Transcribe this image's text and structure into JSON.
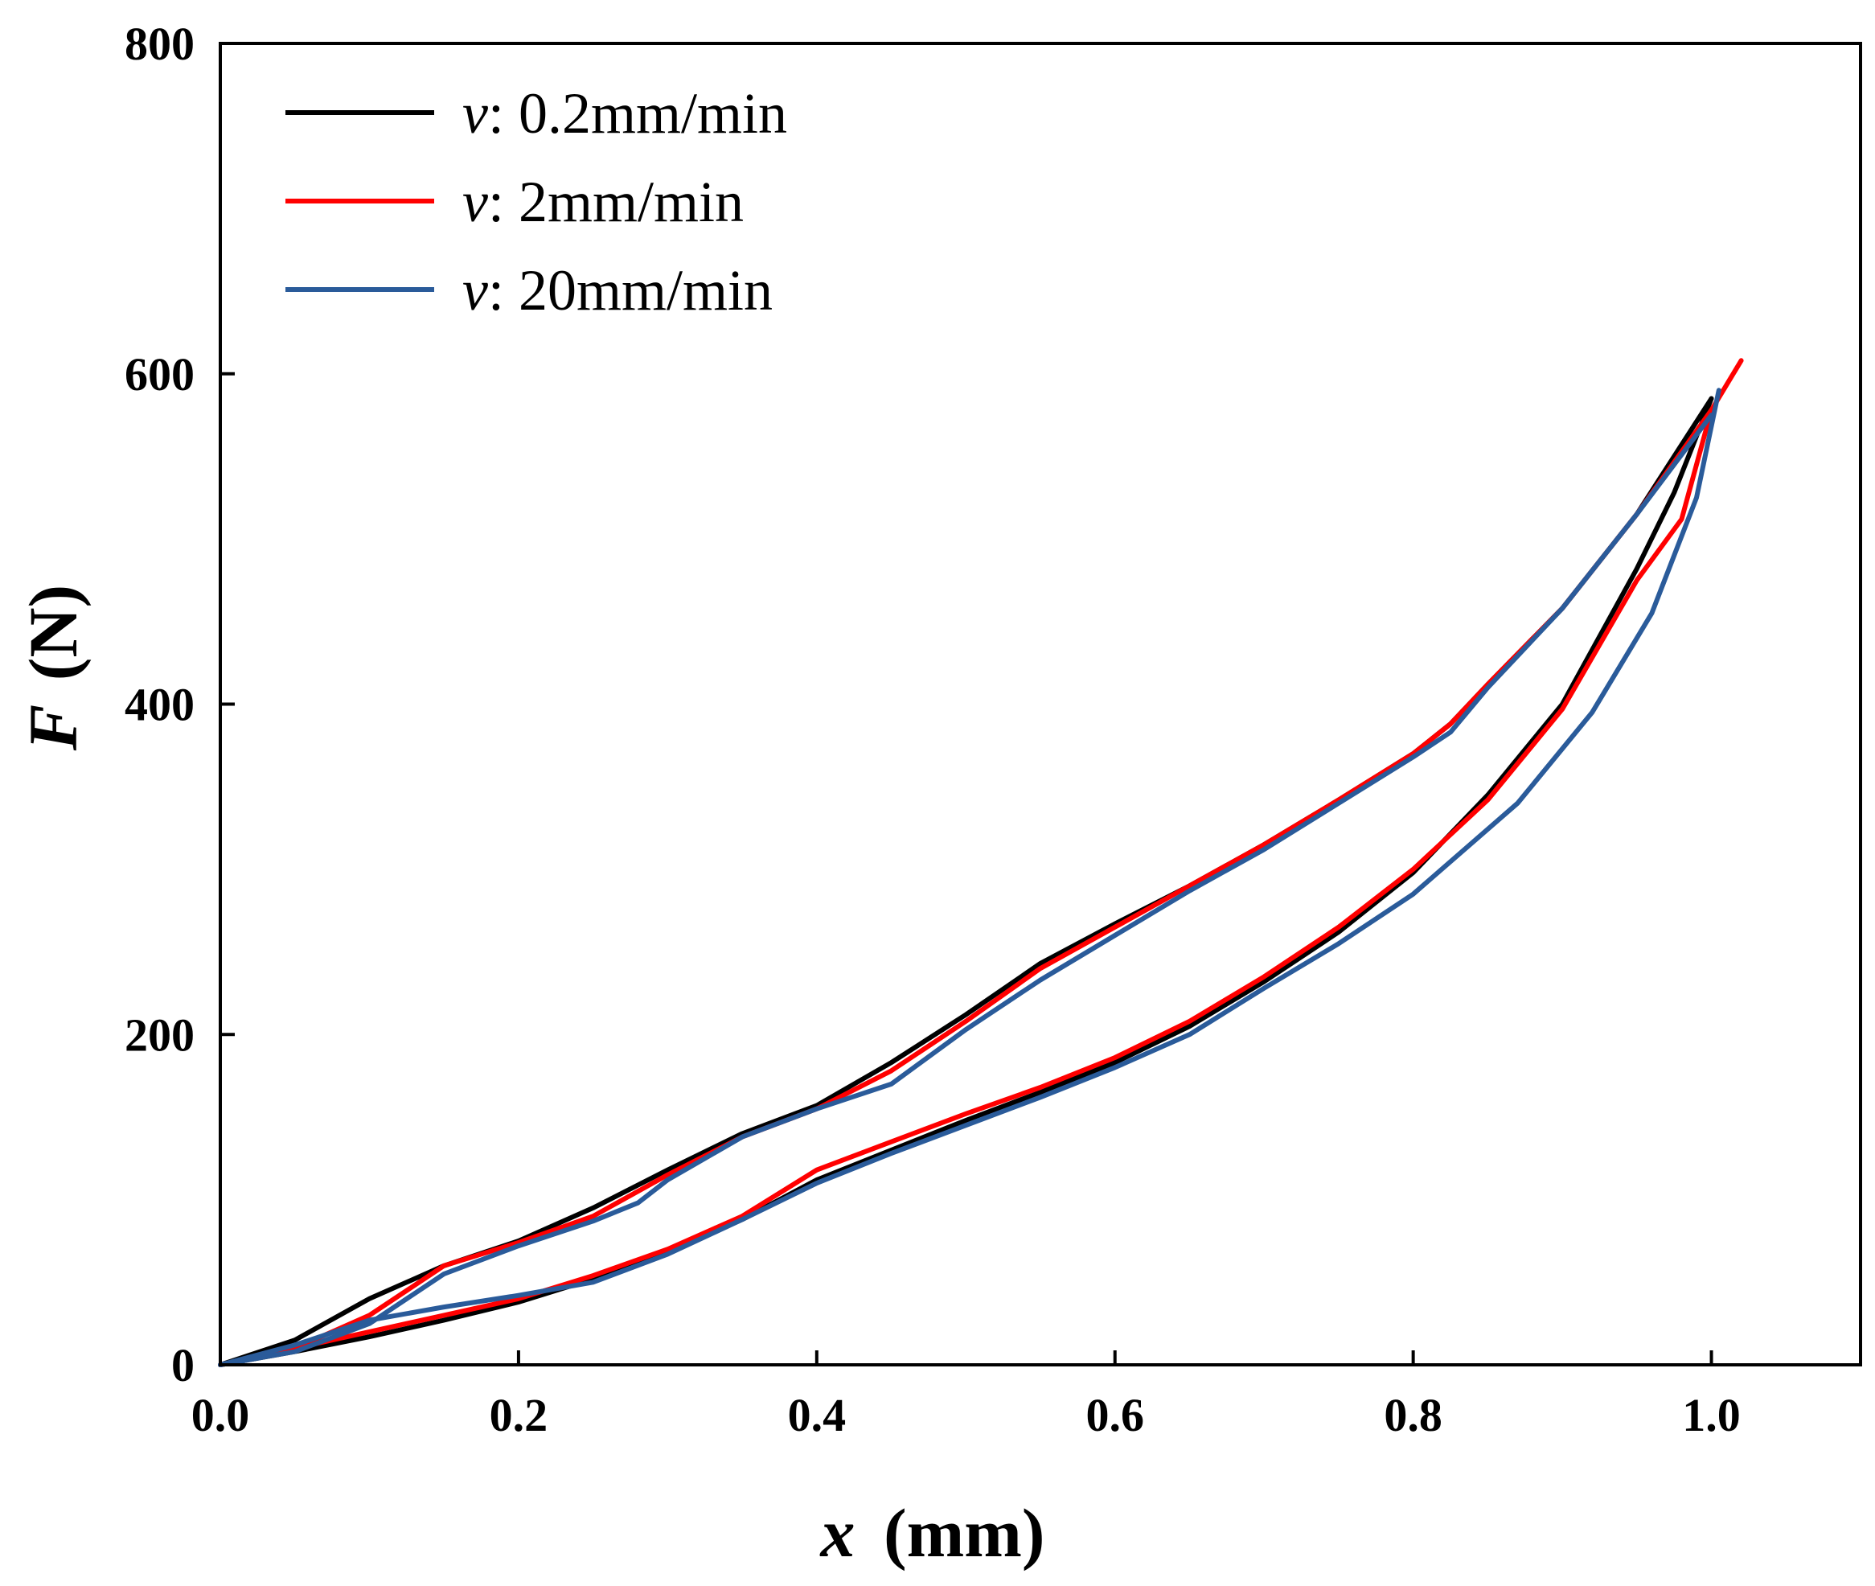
{
  "chart_data": {
    "type": "line",
    "title": "",
    "xlabel": {
      "symbol": "x",
      "unit": "(mm)"
    },
    "ylabel": {
      "symbol": "F",
      "unit": "(N)"
    },
    "xlim": [
      0,
      1.1
    ],
    "ylim": [
      0,
      800
    ],
    "xticks": [
      0.0,
      0.2,
      0.4,
      0.6,
      0.8,
      1.0
    ],
    "xtick_labels": [
      "0.0",
      "0.2",
      "0.4",
      "0.6",
      "0.8",
      "1.0"
    ],
    "yticks": [
      0,
      200,
      400,
      600,
      800
    ],
    "ytick_labels": [
      "0",
      "200",
      "400",
      "600",
      "800"
    ],
    "grid": false,
    "legend_position": "top-left",
    "series": [
      {
        "name": "v: 0.2mm/min",
        "legend_var": "v",
        "legend_text": ": 0.2mm/min",
        "color": "#000000",
        "loading": [
          [
            0,
            0
          ],
          [
            0.05,
            15
          ],
          [
            0.1,
            40
          ],
          [
            0.15,
            60
          ],
          [
            0.2,
            75
          ],
          [
            0.25,
            95
          ],
          [
            0.3,
            118
          ],
          [
            0.35,
            140
          ],
          [
            0.4,
            157
          ],
          [
            0.45,
            183
          ],
          [
            0.5,
            212
          ],
          [
            0.55,
            243
          ],
          [
            0.6,
            267
          ],
          [
            0.65,
            290
          ],
          [
            0.7,
            315
          ],
          [
            0.75,
            342
          ],
          [
            0.8,
            370
          ],
          [
            0.825,
            388
          ],
          [
            0.85,
            412
          ],
          [
            0.9,
            458
          ],
          [
            0.95,
            515
          ],
          [
            1.0,
            585
          ]
        ],
        "unloading": [
          [
            1.0,
            585
          ],
          [
            0.975,
            528
          ],
          [
            0.95,
            482
          ],
          [
            0.9,
            400
          ],
          [
            0.85,
            345
          ],
          [
            0.8,
            298
          ],
          [
            0.75,
            262
          ],
          [
            0.7,
            232
          ],
          [
            0.65,
            205
          ],
          [
            0.6,
            183
          ],
          [
            0.55,
            165
          ],
          [
            0.5,
            148
          ],
          [
            0.45,
            130
          ],
          [
            0.4,
            112
          ],
          [
            0.35,
            88
          ],
          [
            0.3,
            68
          ],
          [
            0.25,
            52
          ],
          [
            0.2,
            38
          ],
          [
            0.15,
            27
          ],
          [
            0.1,
            17
          ],
          [
            0.05,
            8
          ],
          [
            0,
            0
          ]
        ]
      },
      {
        "name": "v: 2mm/min",
        "legend_var": "v",
        "legend_text": ": 2mm/min",
        "color": "#ff0000",
        "loading": [
          [
            0,
            0
          ],
          [
            0.05,
            10
          ],
          [
            0.1,
            30
          ],
          [
            0.15,
            60
          ],
          [
            0.2,
            74
          ],
          [
            0.25,
            90
          ],
          [
            0.3,
            115
          ],
          [
            0.35,
            138
          ],
          [
            0.4,
            155
          ],
          [
            0.45,
            178
          ],
          [
            0.5,
            208
          ],
          [
            0.55,
            240
          ],
          [
            0.6,
            265
          ],
          [
            0.65,
            290
          ],
          [
            0.7,
            315
          ],
          [
            0.75,
            342
          ],
          [
            0.8,
            370
          ],
          [
            0.825,
            388
          ],
          [
            0.85,
            412
          ],
          [
            0.9,
            458
          ],
          [
            0.95,
            515
          ],
          [
            1.0,
            578
          ],
          [
            1.02,
            608
          ]
        ],
        "unloading": [
          [
            1.0,
            578
          ],
          [
            0.98,
            512
          ],
          [
            0.95,
            475
          ],
          [
            0.9,
            397
          ],
          [
            0.85,
            342
          ],
          [
            0.8,
            300
          ],
          [
            0.75,
            265
          ],
          [
            0.7,
            235
          ],
          [
            0.65,
            208
          ],
          [
            0.6,
            186
          ],
          [
            0.55,
            168
          ],
          [
            0.5,
            152
          ],
          [
            0.45,
            135
          ],
          [
            0.4,
            118
          ],
          [
            0.35,
            90
          ],
          [
            0.3,
            70
          ],
          [
            0.25,
            54
          ],
          [
            0.2,
            40
          ],
          [
            0.15,
            30
          ],
          [
            0.1,
            20
          ],
          [
            0.05,
            10
          ],
          [
            0,
            0
          ]
        ]
      },
      {
        "name": "v: 20mm/min",
        "legend_var": "v",
        "legend_text": ": 20mm/min",
        "color": "#2a5b9a",
        "loading": [
          [
            0,
            0
          ],
          [
            0.05,
            8
          ],
          [
            0.1,
            25
          ],
          [
            0.15,
            55
          ],
          [
            0.2,
            72
          ],
          [
            0.25,
            87
          ],
          [
            0.28,
            98
          ],
          [
            0.3,
            112
          ],
          [
            0.35,
            138
          ],
          [
            0.4,
            155
          ],
          [
            0.45,
            170
          ],
          [
            0.5,
            203
          ],
          [
            0.55,
            233
          ],
          [
            0.6,
            260
          ],
          [
            0.65,
            287
          ],
          [
            0.7,
            312
          ],
          [
            0.75,
            340
          ],
          [
            0.8,
            368
          ],
          [
            0.825,
            383
          ],
          [
            0.85,
            410
          ],
          [
            0.9,
            458
          ],
          [
            0.95,
            515
          ],
          [
            1.0,
            575
          ]
        ],
        "unloading": [
          [
            1.005,
            590
          ],
          [
            0.99,
            525
          ],
          [
            0.96,
            455
          ],
          [
            0.92,
            395
          ],
          [
            0.87,
            340
          ],
          [
            0.8,
            285
          ],
          [
            0.75,
            255
          ],
          [
            0.7,
            228
          ],
          [
            0.65,
            200
          ],
          [
            0.6,
            180
          ],
          [
            0.55,
            162
          ],
          [
            0.5,
            145
          ],
          [
            0.45,
            128
          ],
          [
            0.4,
            110
          ],
          [
            0.35,
            88
          ],
          [
            0.3,
            67
          ],
          [
            0.25,
            50
          ],
          [
            0.2,
            42
          ],
          [
            0.15,
            35
          ],
          [
            0.1,
            27
          ],
          [
            0.05,
            12
          ],
          [
            0,
            0
          ]
        ]
      }
    ]
  }
}
